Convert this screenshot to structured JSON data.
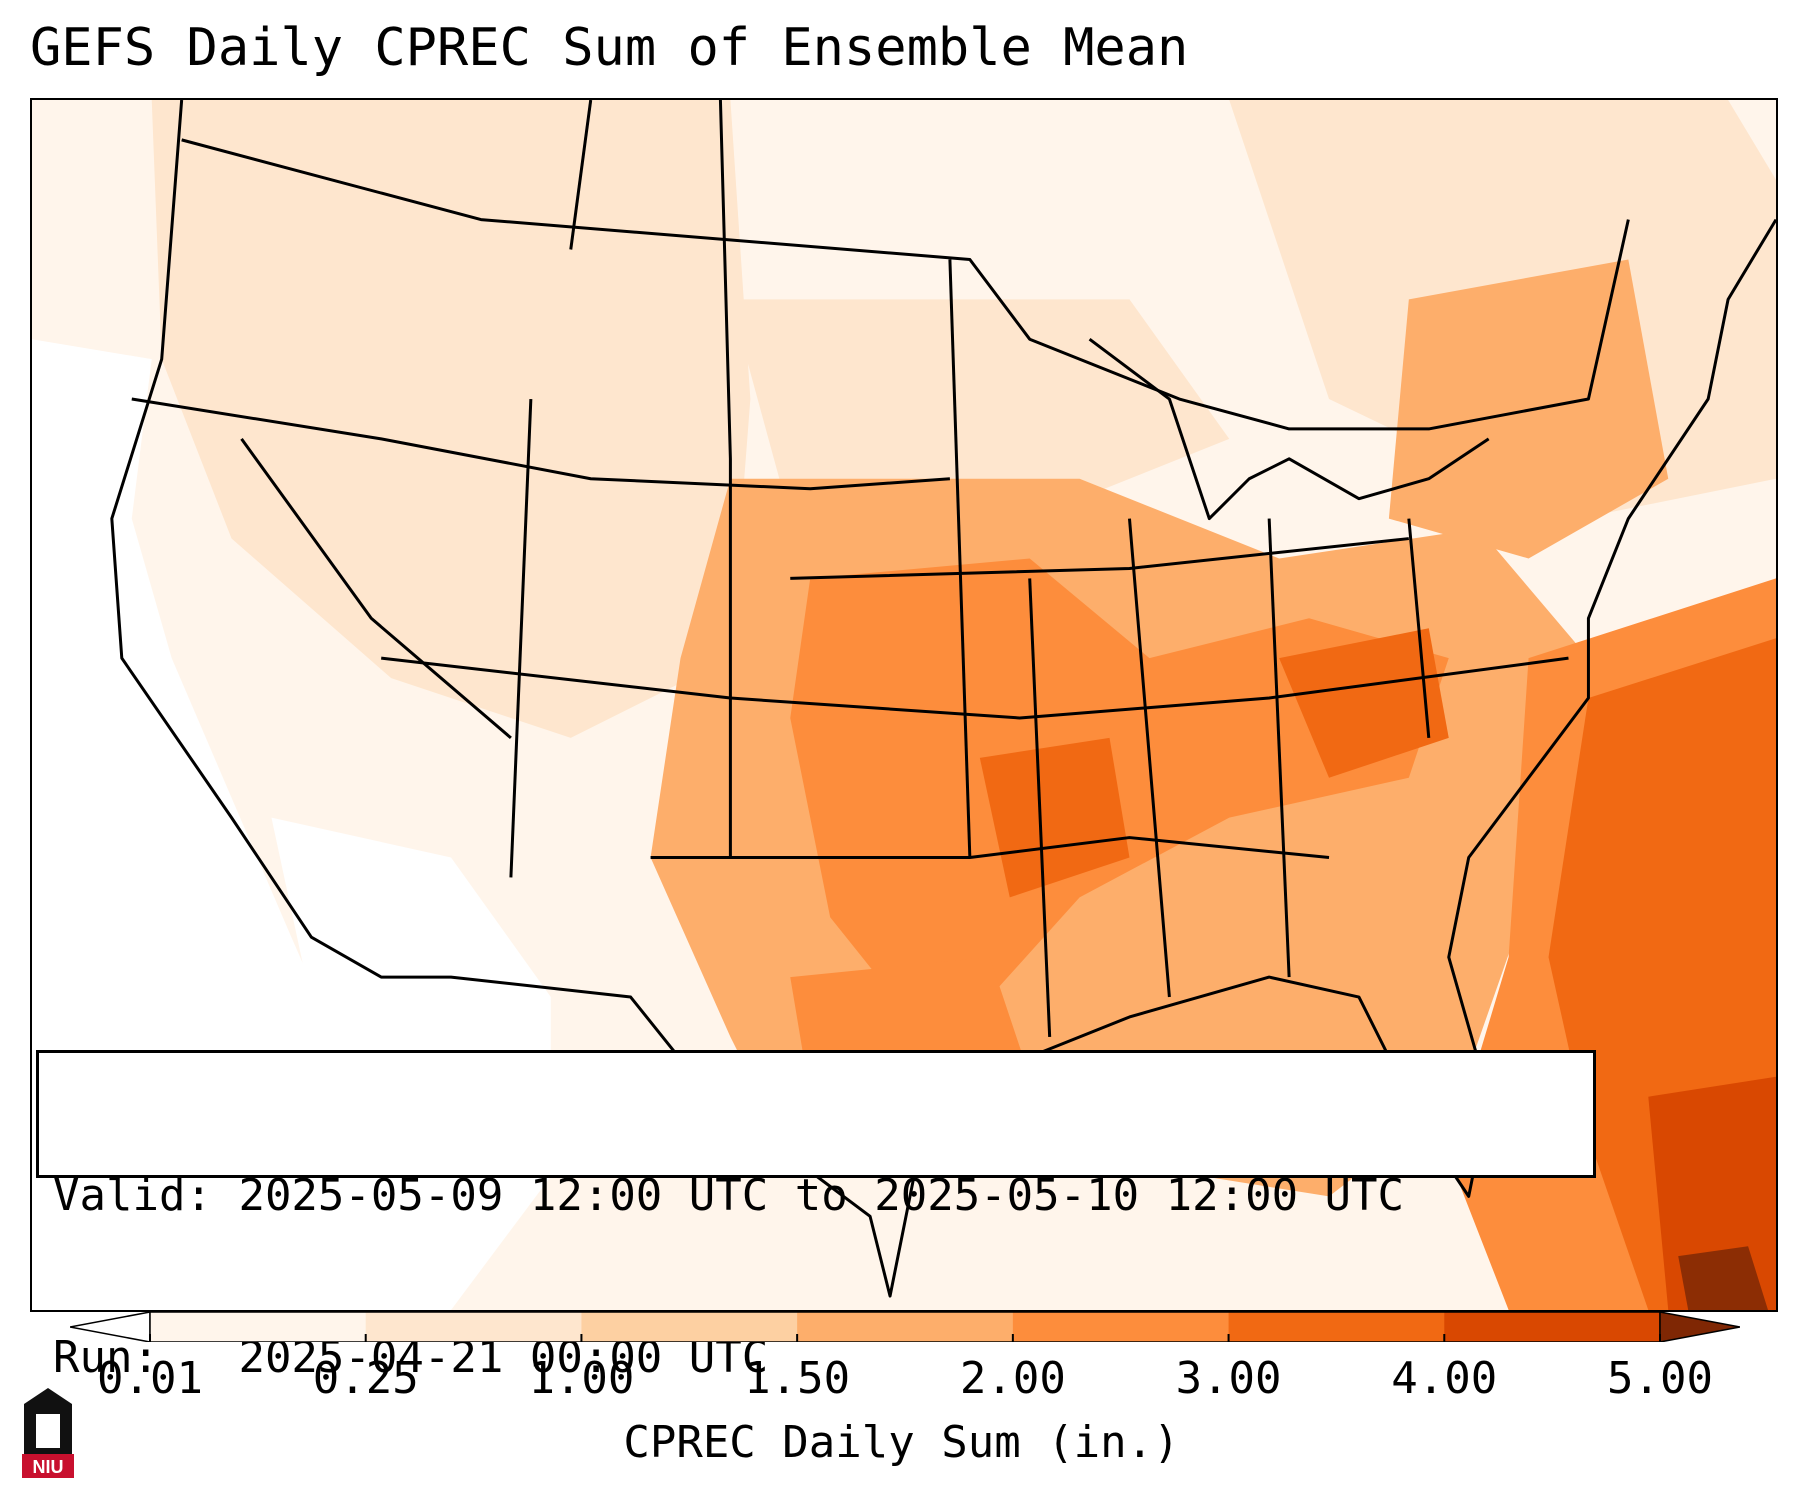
{
  "title": "GEFS Daily CPREC Sum of Ensemble Mean",
  "info": {
    "valid_label": "Valid:",
    "valid_value": "2025-05-09 12:00 UTC to 2025-05-10 12:00 UTC",
    "run_label": "Run:",
    "run_value": "2025-04-21 00:00 UTC"
  },
  "colorbar": {
    "title": "CPREC Daily Sum (in.)",
    "ticks": [
      "0.01",
      "0.25",
      "1.00",
      "1.50",
      "2.00",
      "3.00",
      "4.00",
      "5.00"
    ],
    "colors": [
      "#fff5eb",
      "#fee6ce",
      "#fdd0a2",
      "#fdae6b",
      "#fd8d3c",
      "#f16913",
      "#d94801",
      "#8c2d04"
    ],
    "under_color": "#ffffff",
    "over_color": "#7f2704"
  },
  "logo": {
    "text": "NIU",
    "color": "#c8102e"
  }
}
